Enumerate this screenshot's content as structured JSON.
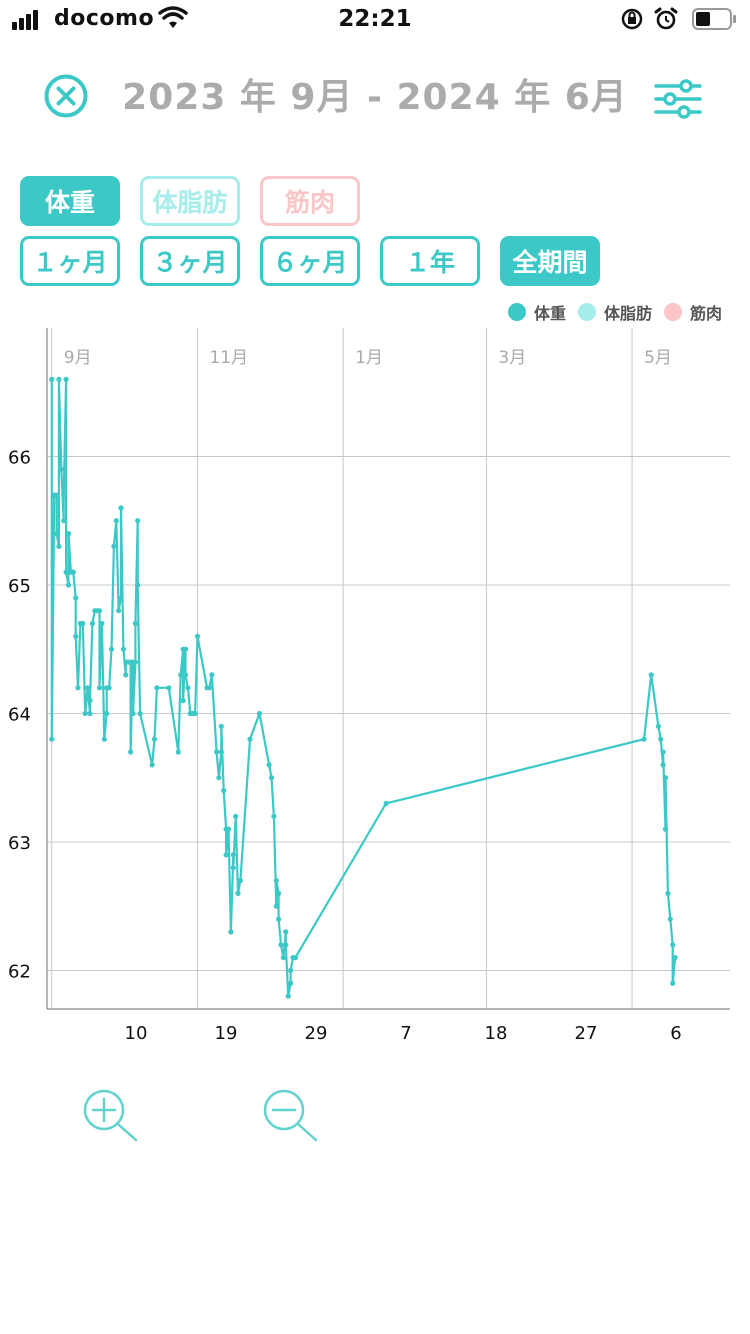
{
  "status": {
    "carrier": "docomo",
    "time": "22:21"
  },
  "header": {
    "title": "2023 年 9月 - 2024 年 6月"
  },
  "metric_buttons": [
    "体重",
    "体脂肪",
    "筋肉"
  ],
  "period_buttons": [
    "１ヶ月",
    "３ヶ月",
    "６ヶ月",
    "１年",
    "全期間"
  ],
  "legend": [
    "体重",
    "体脂肪",
    "筋肉"
  ],
  "colors": {
    "accent": "#3cc8c6",
    "fat": "#a6ecea",
    "muscle": "#fbc6c8"
  },
  "icons": {
    "close": "close-circle-icon",
    "filter": "sliders-icon",
    "zoom_in": "zoom-in-icon",
    "zoom_out": "zoom-out-icon"
  },
  "chart_data": {
    "type": "line",
    "title": "",
    "xlabel": "",
    "ylabel": "",
    "x_range": [
      "2023-08-30",
      "2024-06-11"
    ],
    "ylim": [
      61.7,
      67.0
    ],
    "y_ticks": [
      62,
      63,
      64,
      65,
      66
    ],
    "month_labels": [
      {
        "label": "9月",
        "date": "2023-09-01"
      },
      {
        "label": "11月",
        "date": "2023-11-01"
      },
      {
        "label": "1月",
        "date": "2024-01-01"
      },
      {
        "label": "3月",
        "date": "2024-03-01"
      },
      {
        "label": "5月",
        "date": "2024-05-01"
      }
    ],
    "x_ticks": [
      {
        "label": "10",
        "date": "2023-09-10"
      },
      {
        "label": "19",
        "date": "2023-09-19"
      },
      {
        "label": "29",
        "date": "2023-09-29"
      },
      {
        "label": "7",
        "date": "2023-10-07"
      },
      {
        "label": "18",
        "date": "2023-10-18"
      },
      {
        "label": "27",
        "date": "2023-10-27"
      },
      {
        "label": "6",
        "date": "2023-11-06"
      }
    ],
    "series": [
      {
        "name": "体重",
        "points": [
          [
            "2023-09-01",
            66.6
          ],
          [
            "2023-09-01",
            63.8
          ],
          [
            "2023-09-02",
            65.7
          ],
          [
            "2023-09-03",
            65.7
          ],
          [
            "2023-09-03",
            65.4
          ],
          [
            "2023-09-04",
            65.3
          ],
          [
            "2023-09-04",
            66.6
          ],
          [
            "2023-09-05",
            65.9
          ],
          [
            "2023-09-06",
            65.5
          ],
          [
            "2023-09-06",
            65.7
          ],
          [
            "2023-09-07",
            66.6
          ],
          [
            "2023-09-07",
            65.1
          ],
          [
            "2023-09-08",
            65.0
          ],
          [
            "2023-09-08",
            65.4
          ],
          [
            "2023-09-09",
            65.1
          ],
          [
            "2023-09-10",
            65.1
          ],
          [
            "2023-09-11",
            64.9
          ],
          [
            "2023-09-11",
            64.6
          ],
          [
            "2023-09-12",
            64.2
          ],
          [
            "2023-09-13",
            64.7
          ],
          [
            "2023-09-14",
            64.7
          ],
          [
            "2023-09-15",
            64.0
          ],
          [
            "2023-09-16",
            64.2
          ],
          [
            "2023-09-17",
            64.0
          ],
          [
            "2023-09-17",
            64.1
          ],
          [
            "2023-09-18",
            64.7
          ],
          [
            "2023-09-19",
            64.8
          ],
          [
            "2023-09-20",
            64.8
          ],
          [
            "2023-09-21",
            64.8
          ],
          [
            "2023-09-21",
            64.2
          ],
          [
            "2023-09-22",
            64.7
          ],
          [
            "2023-09-23",
            63.8
          ],
          [
            "2023-09-24",
            64.0
          ],
          [
            "2023-09-24",
            64.2
          ],
          [
            "2023-09-25",
            64.2
          ],
          [
            "2023-09-26",
            64.5
          ],
          [
            "2023-09-27",
            65.3
          ],
          [
            "2023-09-28",
            65.5
          ],
          [
            "2023-09-29",
            64.8
          ],
          [
            "2023-09-30",
            64.9
          ],
          [
            "2023-09-30",
            65.6
          ],
          [
            "2023-10-01",
            64.5
          ],
          [
            "2023-10-02",
            64.3
          ],
          [
            "2023-10-02",
            64.4
          ],
          [
            "2023-10-03",
            64.4
          ],
          [
            "2023-10-04",
            64.4
          ],
          [
            "2023-10-04",
            63.7
          ],
          [
            "2023-10-05",
            64.4
          ],
          [
            "2023-10-05",
            64.0
          ],
          [
            "2023-10-06",
            64.4
          ],
          [
            "2023-10-06",
            64.7
          ],
          [
            "2023-10-07",
            65.5
          ],
          [
            "2023-10-07",
            65.0
          ],
          [
            "2023-10-08",
            64.0
          ],
          [
            "2023-10-13",
            63.6
          ],
          [
            "2023-10-14",
            63.8
          ],
          [
            "2023-10-15",
            64.2
          ],
          [
            "2023-10-20",
            64.2
          ],
          [
            "2023-10-24",
            63.7
          ],
          [
            "2023-10-25",
            64.3
          ],
          [
            "2023-10-26",
            64.5
          ],
          [
            "2023-10-26",
            64.1
          ],
          [
            "2023-10-27",
            64.5
          ],
          [
            "2023-10-27",
            64.3
          ],
          [
            "2023-10-28",
            64.2
          ],
          [
            "2023-10-29",
            64.0
          ],
          [
            "2023-10-30",
            64.0
          ],
          [
            "2023-10-31",
            64.0
          ],
          [
            "2023-11-01",
            64.6
          ],
          [
            "2023-11-05",
            64.2
          ],
          [
            "2023-11-06",
            64.2
          ],
          [
            "2023-11-07",
            64.3
          ],
          [
            "2023-11-09",
            63.7
          ],
          [
            "2023-11-10",
            63.5
          ],
          [
            "2023-11-11",
            63.7
          ],
          [
            "2023-11-11",
            63.9
          ],
          [
            "2023-11-12",
            63.4
          ],
          [
            "2023-11-13",
            63.1
          ],
          [
            "2023-11-13",
            62.9
          ],
          [
            "2023-11-14",
            63.1
          ],
          [
            "2023-11-15",
            62.3
          ],
          [
            "2023-11-16",
            62.9
          ],
          [
            "2023-11-16",
            62.8
          ],
          [
            "2023-11-17",
            63.2
          ],
          [
            "2023-11-18",
            62.6
          ],
          [
            "2023-11-19",
            62.7
          ],
          [
            "2023-11-23",
            63.8
          ],
          [
            "2023-11-27",
            64.0
          ],
          [
            "2023-12-01",
            63.6
          ],
          [
            "2023-12-02",
            63.5
          ],
          [
            "2023-12-03",
            63.2
          ],
          [
            "2023-12-04",
            62.5
          ],
          [
            "2023-12-04",
            62.7
          ],
          [
            "2023-12-05",
            62.6
          ],
          [
            "2023-12-05",
            62.4
          ],
          [
            "2023-12-06",
            62.2
          ],
          [
            "2023-12-07",
            62.1
          ],
          [
            "2023-12-08",
            62.3
          ],
          [
            "2023-12-08",
            62.2
          ],
          [
            "2023-12-09",
            61.8
          ],
          [
            "2023-12-10",
            61.9
          ],
          [
            "2023-12-10",
            62.0
          ],
          [
            "2023-12-11",
            62.1
          ],
          [
            "2023-12-12",
            62.1
          ],
          [
            "2024-01-19",
            63.3
          ],
          [
            "2024-05-06",
            63.8
          ],
          [
            "2024-05-09",
            64.3
          ],
          [
            "2024-05-12",
            63.9
          ],
          [
            "2024-05-13",
            63.8
          ],
          [
            "2024-05-14",
            63.6
          ],
          [
            "2024-05-14",
            63.7
          ],
          [
            "2024-05-15",
            63.1
          ],
          [
            "2024-05-15",
            63.5
          ],
          [
            "2024-05-16",
            62.6
          ],
          [
            "2024-05-17",
            62.4
          ],
          [
            "2024-05-18",
            62.2
          ],
          [
            "2024-05-18",
            61.9
          ],
          [
            "2024-05-19",
            62.1
          ]
        ]
      }
    ],
    "grid": true
  }
}
